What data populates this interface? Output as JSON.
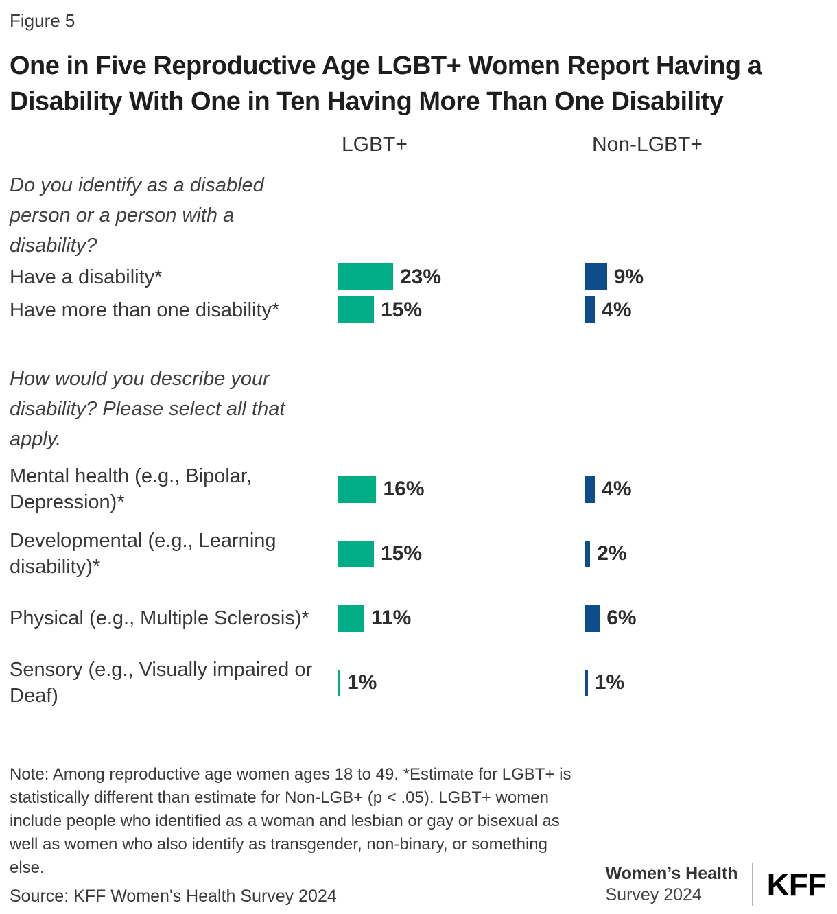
{
  "figure_label": "Figure 5",
  "title": "One in Five Reproductive Age LGBT+ Women Report Having a Disability With One in Ten Having More Than One Disability",
  "column_headers": {
    "lgbt": "LGBT+",
    "non_lgbt": "Non-LGBT+"
  },
  "colors": {
    "lgbt_bar": "#00AD85",
    "non_lgbt_bar": "#0E4D8C"
  },
  "chart_data": {
    "type": "bar",
    "orientation": "horizontal",
    "unit": "percent",
    "series_names": [
      "LGBT+",
      "Non-LGBT+"
    ],
    "legend_position": "column-headers-top",
    "xlim": [
      0,
      100
    ],
    "groups": [
      {
        "question": "Do you identify as a disabled person or a person with a disability?",
        "rows": [
          {
            "label": "Have a disability*",
            "lgbt": 23,
            "lgbt_display": "23%",
            "non_lgbt": 9,
            "non_lgbt_display": "9%"
          },
          {
            "label": "Have more than one disability*",
            "lgbt": 15,
            "lgbt_display": "15%",
            "non_lgbt": 4,
            "non_lgbt_display": "4%"
          }
        ]
      },
      {
        "question": "How would you describe your disability? Please select all that apply.",
        "rows": [
          {
            "label": "Mental health (e.g., Bipolar, Depression)*",
            "lgbt": 16,
            "lgbt_display": "16%",
            "non_lgbt": 4,
            "non_lgbt_display": "4%"
          },
          {
            "label": "Developmental (e.g., Learning disability)*",
            "lgbt": 15,
            "lgbt_display": "15%",
            "non_lgbt": 2,
            "non_lgbt_display": "2%"
          },
          {
            "label": "Physical (e.g., Multiple Sclerosis)*",
            "lgbt": 11,
            "lgbt_display": "11%",
            "non_lgbt": 6,
            "non_lgbt_display": "6%"
          },
          {
            "label": "Sensory (e.g., Visually impaired or Deaf)",
            "lgbt": 1,
            "lgbt_display": "1%",
            "non_lgbt": 1,
            "non_lgbt_display": "1%"
          }
        ]
      }
    ]
  },
  "note": "Note: Among reproductive age women ages 18 to 49. *Estimate for LGBT+ is statistically different than estimate for Non-LGB+ (p < .05). LGBT+ women include people who identified as a woman and lesbian or gay or bisexual as well as women who also identify as transgender, non-binary, or something else.",
  "source": "Source: KFF Women's Health Survey 2024",
  "footer": {
    "program_line1": "Women’s Health",
    "program_line2": "Survey 2024",
    "logo": "KFF"
  }
}
